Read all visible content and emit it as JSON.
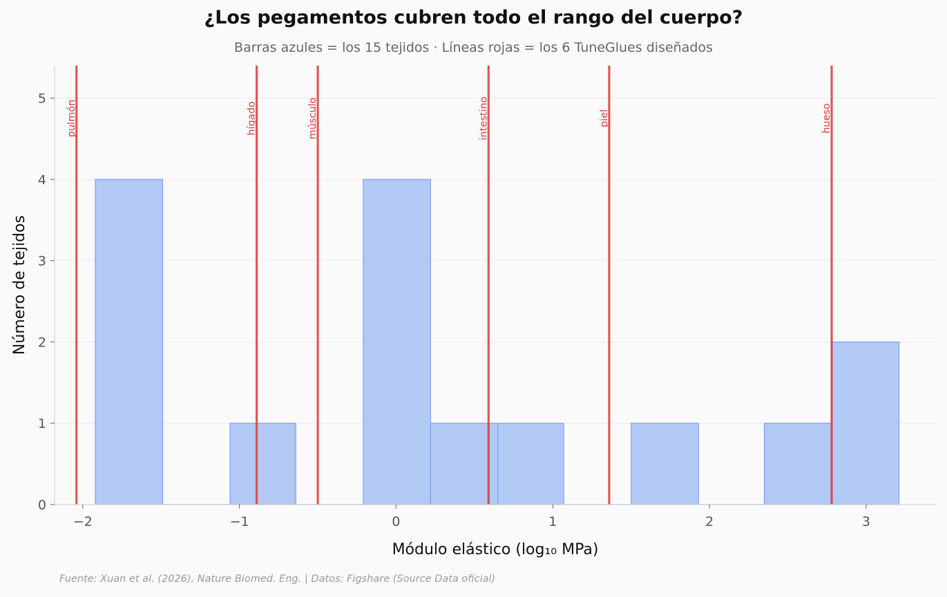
{
  "chart_data": {
    "type": "bar",
    "title": "¿Los pegamentos cubren todo el rango del cuerpo?",
    "subtitle": "Barras azules = los 15 tejidos · Líneas rojas = los 6 TuneGlues diseñados",
    "xlabel": "Módulo elástico (log₁₀ MPa)",
    "ylabel": "Número de tejidos",
    "xlim": [
      -2.18,
      3.45
    ],
    "ylim": [
      0,
      5.4
    ],
    "xticks": [
      -2,
      -1,
      0,
      1,
      2,
      3
    ],
    "xtick_labels": [
      "−2",
      "−1",
      "0",
      "1",
      "2",
      "3"
    ],
    "yticks": [
      0,
      1,
      2,
      3,
      4,
      5
    ],
    "grid": "horizontal",
    "bar_color": "#aec6f5",
    "bar_edge_color": "#7ea2ec",
    "bins": [
      {
        "x0": -1.92,
        "x1": -1.49,
        "count": 4
      },
      {
        "x0": -1.49,
        "x1": -1.06,
        "count": 0
      },
      {
        "x0": -1.06,
        "x1": -0.64,
        "count": 1
      },
      {
        "x0": -0.64,
        "x1": -0.21,
        "count": 0
      },
      {
        "x0": -0.21,
        "x1": 0.22,
        "count": 4
      },
      {
        "x0": 0.22,
        "x1": 0.65,
        "count": 1
      },
      {
        "x0": 0.65,
        "x1": 1.07,
        "count": 1
      },
      {
        "x0": 1.07,
        "x1": 1.5,
        "count": 0
      },
      {
        "x0": 1.5,
        "x1": 1.93,
        "count": 1
      },
      {
        "x0": 1.93,
        "x1": 2.35,
        "count": 0
      },
      {
        "x0": 2.35,
        "x1": 2.78,
        "count": 1
      },
      {
        "x0": 2.78,
        "x1": 3.21,
        "count": 2
      }
    ],
    "glue_color": "#d93a3a",
    "glues": [
      {
        "label": "pulmón",
        "x": -2.04
      },
      {
        "label": "hígado",
        "x": -0.89
      },
      {
        "label": "músculo",
        "x": -0.5
      },
      {
        "label": "intestino",
        "x": 0.59
      },
      {
        "label": "piel",
        "x": 1.36
      },
      {
        "label": "hueso",
        "x": 2.78
      }
    ]
  },
  "footer": "Fuente: Xuan et al. (2026), Nature Biomed. Eng. | Datos: Figshare (Source Data oficial)"
}
